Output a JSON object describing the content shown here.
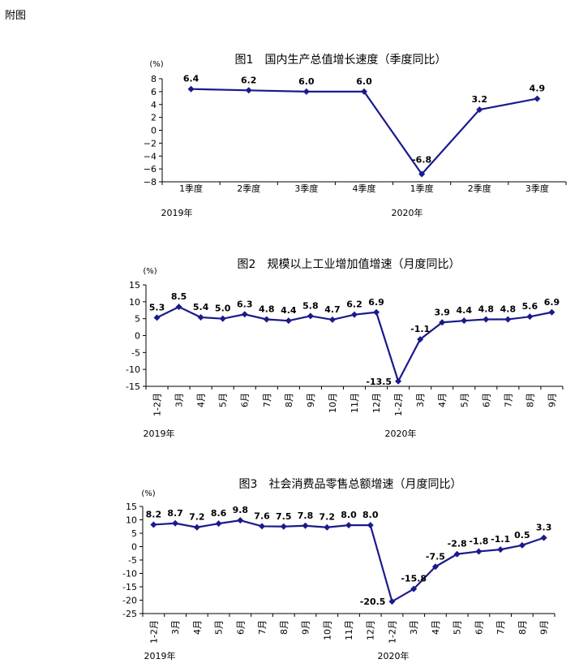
{
  "page_label": "附图",
  "chart_data": [
    {
      "type": "line",
      "title": "图1　国内生产总值增长速度（季度同比）",
      "unit": "(%)",
      "ylim": [
        -8,
        8
      ],
      "yticks": [
        "8",
        "6",
        "4",
        "2",
        "0",
        "−2",
        "−4",
        "−6",
        "−8"
      ],
      "categories": [
        "1季度",
        "2季度",
        "3季度",
        "4季度",
        "1季度",
        "2季度",
        "3季度"
      ],
      "values": [
        6.4,
        6.2,
        6.0,
        6.0,
        -6.8,
        3.2,
        4.9
      ],
      "value_labels": [
        "6.4",
        "6.2",
        "6.0",
        "6.0",
        "-6.8",
        "3.2",
        "4.9"
      ],
      "year_labels": [
        "2019年",
        "2020年"
      ],
      "line_color": "#1a1a8c"
    },
    {
      "type": "line",
      "title": "图2　规模以上工业增加值增速（月度同比）",
      "unit": "(%)",
      "ylim": [
        -15,
        15
      ],
      "yticks": [
        "15",
        "10",
        "5",
        "0",
        "-5",
        "-10",
        "-15"
      ],
      "categories": [
        "1-2月",
        "3月",
        "4月",
        "5月",
        "6月",
        "7月",
        "8月",
        "9月",
        "10月",
        "11月",
        "12月",
        "1-2月",
        "3月",
        "4月",
        "5月",
        "6月",
        "7月",
        "8月",
        "9月"
      ],
      "values": [
        5.3,
        8.5,
        5.4,
        5.0,
        6.3,
        4.8,
        4.4,
        5.8,
        4.7,
        6.2,
        6.9,
        -13.5,
        -1.1,
        3.9,
        4.4,
        4.8,
        4.8,
        5.6,
        6.9
      ],
      "value_labels": [
        "5.3",
        "8.5",
        "5.4",
        "5.0",
        "6.3",
        "4.8",
        "4.4",
        "5.8",
        "4.7",
        "6.2",
        "6.9",
        "-13.5",
        "-1.1",
        "3.9",
        "4.4",
        "4.8",
        "4.8",
        "5.6",
        "6.9"
      ],
      "year_labels": [
        "2019年",
        "2020年"
      ],
      "line_color": "#1a1a8c"
    },
    {
      "type": "line",
      "title": "图3　社会消费品零售总额增速（月度同比）",
      "unit": "(%)",
      "ylim": [
        -25,
        15
      ],
      "yticks": [
        "15",
        "10",
        "5",
        "0",
        "-5",
        "-10",
        "-15",
        "-20",
        "-25"
      ],
      "categories": [
        "1-2月",
        "3月",
        "4月",
        "5月",
        "6月",
        "7月",
        "8月",
        "9月",
        "10月",
        "11月",
        "12月",
        "1-2月",
        "3月",
        "4月",
        "5月",
        "6月",
        "7月",
        "8月",
        "9月"
      ],
      "values": [
        8.2,
        8.7,
        7.2,
        8.6,
        9.8,
        7.6,
        7.5,
        7.8,
        7.2,
        8.0,
        8.0,
        -20.5,
        -15.8,
        -7.5,
        -2.8,
        -1.8,
        -1.1,
        0.5,
        3.3
      ],
      "value_labels": [
        "8.2",
        "8.7",
        "7.2",
        "8.6",
        "9.8",
        "7.6",
        "7.5",
        "7.8",
        "7.2",
        "8.0",
        "8.0",
        "-20.5",
        "-15.8",
        "-7.5",
        "-2.8",
        "-1.8",
        "-1.1",
        "0.5",
        "3.3"
      ],
      "year_labels": [
        "2019年",
        "2020年"
      ],
      "line_color": "#1a1a8c"
    }
  ]
}
